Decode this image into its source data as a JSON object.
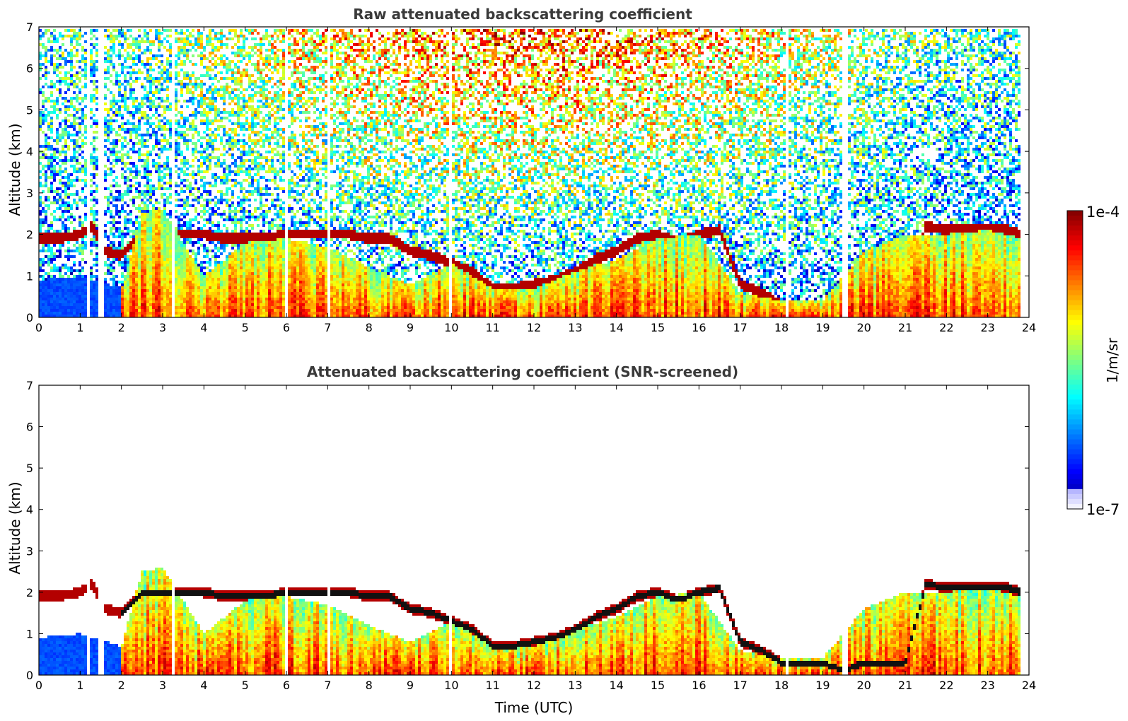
{
  "chart_data": [
    {
      "type": "heatmap",
      "title": "Raw attenuated backscattering coefficient",
      "xlabel": "",
      "ylabel": "Altitude (km)",
      "xlim": [
        0,
        24
      ],
      "ylim": [
        0,
        7
      ],
      "xticks": [
        "0",
        "1",
        "2",
        "3",
        "4",
        "5",
        "6",
        "7",
        "8",
        "9",
        "10",
        "11",
        "12",
        "13",
        "14",
        "15",
        "16",
        "17",
        "18",
        "19",
        "20",
        "21",
        "22",
        "23",
        "24"
      ],
      "yticks": [
        "0",
        "1",
        "2",
        "3",
        "4",
        "5",
        "6",
        "7"
      ],
      "screened": false,
      "colorbar": {
        "min_label": "1e-7",
        "max_label": "1e-4",
        "unit": "1/m/sr",
        "scale": "log"
      },
      "data_end_hour": 23.8,
      "cloud_base_km": {
        "hours": [
          0,
          0.5,
          1.0,
          1.3,
          1.6,
          2.0,
          2.5,
          3.0,
          3.5,
          4.0,
          4.5,
          5.0,
          5.5,
          6.0,
          6.5,
          7.0,
          7.5,
          8.0,
          8.5,
          9.0,
          9.5,
          10.0,
          10.5,
          11.0,
          11.5,
          12.0,
          12.5,
          13.0,
          13.5,
          14.0,
          14.5,
          15.0,
          15.5,
          16.0,
          16.5,
          17.0,
          17.5,
          18.0,
          18.5,
          19.0,
          19.5,
          20.0,
          20.5,
          21.0,
          21.5,
          22.0,
          22.5,
          23.0,
          23.5,
          23.8
        ],
        "values": [
          1.9,
          1.9,
          2.0,
          2.2,
          1.6,
          1.5,
          2.0,
          2.0,
          2.0,
          2.0,
          1.9,
          1.9,
          1.9,
          2.0,
          2.0,
          2.0,
          2.0,
          1.9,
          1.9,
          1.6,
          1.5,
          1.3,
          1.1,
          0.7,
          0.7,
          0.8,
          0.9,
          1.1,
          1.4,
          1.6,
          1.9,
          2.0,
          1.8,
          2.0,
          2.1,
          0.8,
          0.6,
          0.3,
          0.3,
          0.3,
          0.1,
          0.3,
          0.3,
          0.3,
          2.2,
          2.1,
          2.1,
          2.1,
          2.1,
          2.0
        ]
      },
      "boundary_layer_top_km": {
        "hours": [
          0,
          1,
          2,
          2.5,
          3,
          4,
          5,
          6,
          7,
          8,
          9,
          10,
          11,
          12,
          13,
          14,
          15,
          16,
          17,
          18,
          19,
          20,
          21,
          22,
          23,
          23.8
        ],
        "values": [
          0.9,
          1.0,
          0.7,
          2.5,
          2.6,
          1.0,
          1.8,
          1.9,
          1.7,
          1.2,
          0.8,
          1.3,
          0.7,
          0.7,
          1.1,
          1.4,
          1.9,
          2.0,
          0.6,
          0.4,
          0.4,
          1.6,
          2.0,
          2.0,
          2.1,
          1.9
        ]
      }
    },
    {
      "type": "heatmap",
      "title": "Attenuated backscattering coefficient (SNR-screened)",
      "xlabel": "Time (UTC)",
      "ylabel": "Altitude (km)",
      "xlim": [
        0,
        24
      ],
      "ylim": [
        0,
        7
      ],
      "xticks": [
        "0",
        "1",
        "2",
        "3",
        "4",
        "5",
        "6",
        "7",
        "8",
        "9",
        "10",
        "11",
        "12",
        "13",
        "14",
        "15",
        "16",
        "17",
        "18",
        "19",
        "20",
        "21",
        "22",
        "23",
        "24"
      ],
      "yticks": [
        "0",
        "1",
        "2",
        "3",
        "4",
        "5",
        "6",
        "7"
      ],
      "screened": true,
      "data_end_hour": 23.8
    }
  ],
  "colors": {
    "jet_low": "#00007f",
    "jet_mid": "#7fff7f",
    "jet_high": "#7f0000",
    "title": "#3a3a3a",
    "axis": "#000000"
  }
}
